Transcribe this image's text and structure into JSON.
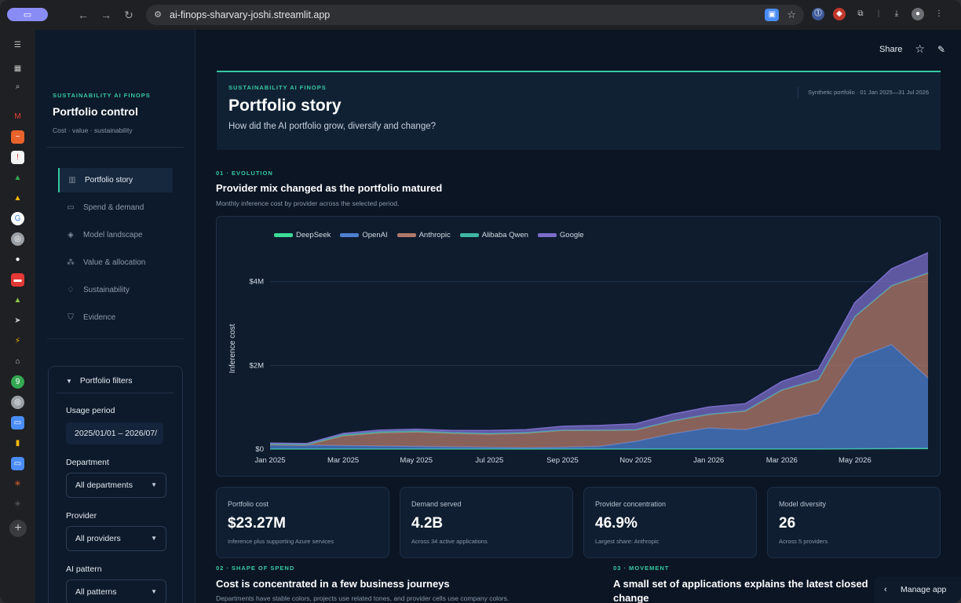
{
  "browser": {
    "url": "ai-finops-sharvary-joshi.streamlit.app"
  },
  "app": {
    "share_label": "Share"
  },
  "sidebar": {
    "eyebrow": "SUSTAINABILITY AI FINOPS",
    "title": "Portfolio control",
    "subtitle": "Cost · value · sustainability",
    "nav": [
      {
        "label": "Portfolio story",
        "icon": "bar-chart-icon",
        "active": true
      },
      {
        "label": "Spend & demand",
        "icon": "wallet-icon",
        "active": false
      },
      {
        "label": "Model landscape",
        "icon": "layers-icon",
        "active": false
      },
      {
        "label": "Value & allocation",
        "icon": "network-icon",
        "active": false
      },
      {
        "label": "Sustainability",
        "icon": "bell-icon",
        "active": false
      },
      {
        "label": "Evidence",
        "icon": "shield-icon",
        "active": false
      }
    ],
    "filters": {
      "header": "Portfolio filters",
      "usage_label": "Usage period",
      "usage_value": "2025/01/01 – 2026/07/",
      "department_label": "Department",
      "department_value": "All departments",
      "provider_label": "Provider",
      "provider_value": "All providers",
      "pattern_label": "AI pattern",
      "pattern_value": "All patterns"
    }
  },
  "hero": {
    "eyebrow": "SUSTAINABILITY AI FINOPS",
    "title": "Portfolio story",
    "subtitle": "How did the AI portfolio grow, diversify and change?",
    "meta": "Synthetic portfolio · 01 Jan 2025—31 Jul 2026"
  },
  "section1": {
    "eyebrow": "01 · EVOLUTION",
    "title": "Provider mix changed as the portfolio matured",
    "subtitle": "Monthly inference cost by provider across the selected period."
  },
  "chart_data": {
    "type": "area",
    "stacked": true,
    "ylabel": "Inference cost",
    "ylim": [
      0,
      4800000
    ],
    "yticks": [
      0,
      2000000,
      4000000
    ],
    "ytick_labels": [
      "$0",
      "$2M",
      "$4M"
    ],
    "x": [
      "2025-01",
      "2025-02",
      "2025-03",
      "2025-04",
      "2025-05",
      "2025-06",
      "2025-07",
      "2025-08",
      "2025-09",
      "2025-10",
      "2025-11",
      "2025-12",
      "2026-01",
      "2026-02",
      "2026-03",
      "2026-04",
      "2026-05",
      "2026-06",
      "2026-07"
    ],
    "xtick_labels": [
      "Jan 2025",
      "Mar 2025",
      "May 2025",
      "Jul 2025",
      "Sep 2025",
      "Nov 2025",
      "Jan 2026",
      "Mar 2026",
      "May 2026"
    ],
    "xtick_index": [
      0,
      2,
      4,
      6,
      8,
      10,
      12,
      14,
      16
    ],
    "legend": "top-left",
    "series": [
      {
        "name": "DeepSeek",
        "color": "#3ddc97",
        "values": [
          5000,
          5000,
          5000,
          5000,
          5000,
          5000,
          5000,
          5000,
          5000,
          5000,
          5000,
          5000,
          5000,
          5000,
          5000,
          5000,
          10000,
          15000,
          20000
        ]
      },
      {
        "name": "OpenAI",
        "color": "#4e7fd0",
        "values": [
          100000,
          90000,
          80000,
          70000,
          60000,
          50000,
          40000,
          30000,
          40000,
          60000,
          180000,
          360000,
          500000,
          460000,
          650000,
          850000,
          2150000,
          2480000,
          1680000
        ]
      },
      {
        "name": "Anthropic",
        "color": "#b0786a",
        "values": [
          0,
          0,
          230000,
          310000,
          340000,
          320000,
          310000,
          340000,
          400000,
          380000,
          270000,
          300000,
          320000,
          440000,
          750000,
          800000,
          1000000,
          1400000,
          2500000
        ]
      },
      {
        "name": "Alibaba Qwen",
        "color": "#3fb6a5",
        "values": [
          20000,
          20000,
          30000,
          30000,
          30000,
          20000,
          20000,
          20000,
          10000,
          10000,
          10000,
          10000,
          10000,
          10000,
          10000,
          10000,
          10000,
          10000,
          10000
        ]
      },
      {
        "name": "Google",
        "color": "#7a6cc8",
        "values": [
          20000,
          20000,
          30000,
          40000,
          40000,
          50000,
          70000,
          70000,
          90000,
          110000,
          140000,
          160000,
          170000,
          170000,
          200000,
          240000,
          330000,
          400000,
          480000
        ]
      }
    ]
  },
  "kpis": [
    {
      "label": "Portfolio cost",
      "value": "$23.27M",
      "note": "Inference plus supporting Azure services"
    },
    {
      "label": "Demand served",
      "value": "4.2B",
      "note": "Across 34 active applications"
    },
    {
      "label": "Provider concentration",
      "value": "46.9%",
      "note": "Largest share: Anthropic"
    },
    {
      "label": "Model diversity",
      "value": "26",
      "note": "Across 5 providers"
    }
  ],
  "section2": {
    "eyebrow": "02 · SHAPE OF SPEND",
    "title": "Cost is concentrated in a few business journeys",
    "subtitle": "Departments have stable colors, projects use related tones, and provider cells use company colors."
  },
  "section3": {
    "eyebrow": "03 · MOVEMENT",
    "title": "A small set of applications explains the latest closed",
    "title2": "change"
  },
  "manage_app": "Manage app"
}
